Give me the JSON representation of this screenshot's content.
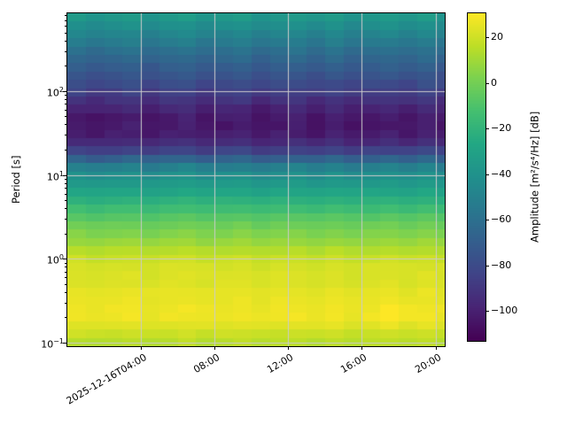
{
  "figure": {
    "background": "#ffffff",
    "grid_color": "#cccccc"
  },
  "y_axis": {
    "label": "Period [s]",
    "scale": "log",
    "min_period_s": 0.0906,
    "max_period_s": 845,
    "major_ticks": [
      {
        "base": "10",
        "exp": "−1",
        "value": 0.1
      },
      {
        "base": "10",
        "exp": "0",
        "value": 1
      },
      {
        "base": "10",
        "exp": "1",
        "value": 10
      },
      {
        "base": "10",
        "exp": "2",
        "value": 100
      }
    ]
  },
  "x_axis": {
    "start": "2025-12-16T00:00",
    "span_hours": 20.5,
    "ticks": [
      {
        "label": "2025-12-16T04:00",
        "hour": 4
      },
      {
        "label": "08:00",
        "hour": 8
      },
      {
        "label": "12:00",
        "hour": 12
      },
      {
        "label": "16:00",
        "hour": 16
      },
      {
        "label": "20:00",
        "hour": 20
      }
    ]
  },
  "colorbar": {
    "label": "Amplitude [m²/s⁴/Hz] [dB]",
    "vmin": -113,
    "vmax": 30.5,
    "colormap": "viridis",
    "ticks": [
      {
        "label": "20",
        "value": 20
      },
      {
        "label": "0",
        "value": 0
      },
      {
        "label": "−20",
        "value": -20
      },
      {
        "label": "−40",
        "value": -40
      },
      {
        "label": "−60",
        "value": -60
      },
      {
        "label": "−80",
        "value": -80
      },
      {
        "label": "−100",
        "value": -100
      }
    ],
    "viridis_stops": [
      "#440154",
      "#482474",
      "#404387",
      "#345e8d",
      "#29788e",
      "#20908c",
      "#22a784",
      "#44bf70",
      "#7ad151",
      "#bdde26",
      "#fde725"
    ]
  },
  "chart_data": {
    "type": "heatmap",
    "title": "",
    "xlabel": "",
    "ylabel": "Period [s]",
    "value_label": "Amplitude [m²/s⁴/Hz] [dB]",
    "colormap": "viridis",
    "grid": true,
    "legend": false,
    "time_start": "2025-12-16T00:00",
    "time_span_hours": 20.5,
    "time_bin_hours": 1,
    "n_time_bins": 21,
    "period_min_s": 0.0906,
    "period_max_s": 845,
    "n_period_bins": 40,
    "vmin_db": -113,
    "vmax_db": 30.5,
    "profile_db": [
      15,
      19,
      24,
      27,
      27,
      26,
      25,
      23,
      22.5,
      21.5,
      19,
      14,
      8,
      3,
      -2,
      -8,
      -15,
      -22,
      -29,
      -36,
      -42,
      -52,
      -68,
      -85,
      -96,
      -102,
      -104,
      -103,
      -99,
      -93,
      -87,
      -81,
      -76,
      -71,
      -66,
      -61,
      -55,
      -49,
      -43,
      -37
    ],
    "column_offsets_db": [
      1.5,
      -1.5,
      0.5,
      2.5,
      -2.0,
      1.0,
      3.0,
      -1.0,
      0.5,
      2.5,
      -2.5,
      0.5,
      2.0,
      -1.5,
      2.5,
      -2.0,
      0.0,
      2.0,
      -1.0,
      2.5,
      -1.5
    ],
    "hot_spots": [
      {
        "col": 16,
        "row": 3,
        "db": 1.0
      },
      {
        "col": 17,
        "row": 2,
        "db": 1.5
      },
      {
        "col": 17,
        "row": 3,
        "db": 2.5
      },
      {
        "col": 17,
        "row": 4,
        "db": 2.0
      },
      {
        "col": 18,
        "row": 3,
        "db": 2.0
      },
      {
        "col": 18,
        "row": 4,
        "db": 1.5
      }
    ],
    "cell_noise_db_band": 2.0,
    "cell_noise_db_base": 1.0,
    "column_weight_upper": 1.0,
    "column_weight_mid": 0.5,
    "column_weight_lower": 0.35
  }
}
